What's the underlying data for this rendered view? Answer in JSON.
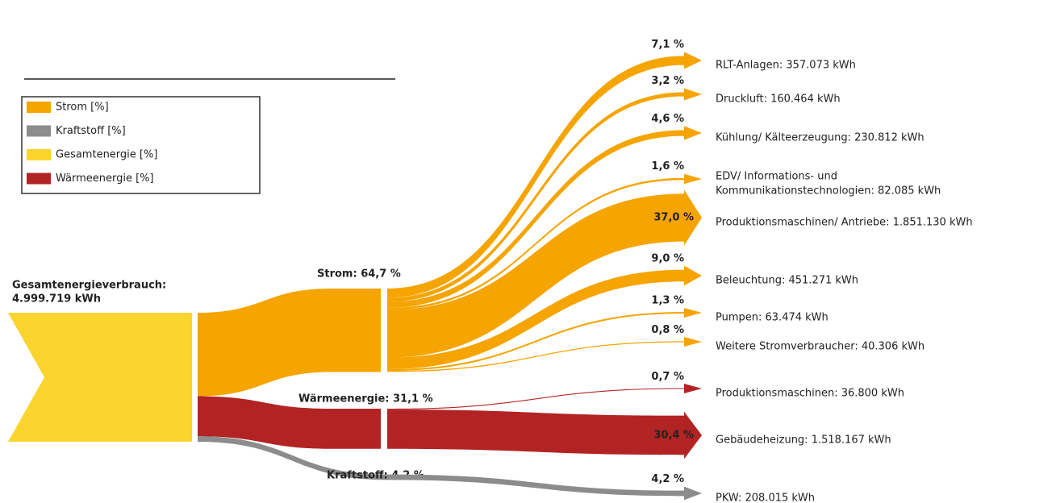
{
  "chart_data": {
    "type": "sankey",
    "legend": [
      {
        "name": "Strom [%]",
        "color": "#f5a400"
      },
      {
        "name": "Kraftstoff [%]",
        "color": "#8c8c8c"
      },
      {
        "name": "Gesamtenergie [%]",
        "color": "#fbd42e"
      },
      {
        "name": "Wärmeenergie [%]",
        "color": "#b22424"
      }
    ],
    "source": {
      "label": [
        "Gesamtenergieverbrauch:",
        "4.999.719 kWh"
      ],
      "color": "#fbd42e"
    },
    "groups": [
      {
        "label": "Strom: 64,7 %",
        "value": 64.7,
        "color": "#f5a400",
        "targets": [
          {
            "label": [
              "RLT-Anlagen: 357.073 kWh"
            ],
            "value": 7.1,
            "value_label": "7,1 %"
          },
          {
            "label": [
              "Druckluft: 160.464 kWh"
            ],
            "value": 3.2,
            "value_label": "3,2 %"
          },
          {
            "label": [
              "Kühlung/ Kälteerzeugung: 230.812 kWh"
            ],
            "value": 4.6,
            "value_label": "4,6 %"
          },
          {
            "label": [
              "EDV/ Informations- und",
              "Kommunikationstechnologien: 82.085 kWh"
            ],
            "value": 1.6,
            "value_label": "1,6 %"
          },
          {
            "label": [
              "Produktionsmaschinen/ Antriebe: 1.851.130 kWh"
            ],
            "value": 37.0,
            "value_label": "37,0 %"
          },
          {
            "label": [
              "Beleuchtung: 451.271 kWh"
            ],
            "value": 9.0,
            "value_label": "9,0 %"
          },
          {
            "label": [
              "Pumpen: 63.474 kWh"
            ],
            "value": 1.3,
            "value_label": "1,3 %"
          },
          {
            "label": [
              "Weitere Stromverbraucher: 40.306 kWh"
            ],
            "value": 0.8,
            "value_label": "0,8 %"
          }
        ]
      },
      {
        "label": "Wärmeenergie: 31,1 %",
        "value": 31.1,
        "color": "#b22424",
        "targets": [
          {
            "label": [
              "Produktionsmaschinen: 36.800 kWh"
            ],
            "value": 0.7,
            "value_label": "0,7 %"
          },
          {
            "label": [
              "Gebäudeheizung: 1.518.167 kWh"
            ],
            "value": 30.4,
            "value_label": "30,4 %"
          }
        ]
      },
      {
        "label": "Kraftstoff: 4,2 %",
        "value": 4.2,
        "color": "#8c8c8c",
        "targets": [
          {
            "label": [
              "PKW: 208.015 kWh"
            ],
            "value": 4.2,
            "value_label": "4,2 %"
          }
        ]
      }
    ]
  }
}
